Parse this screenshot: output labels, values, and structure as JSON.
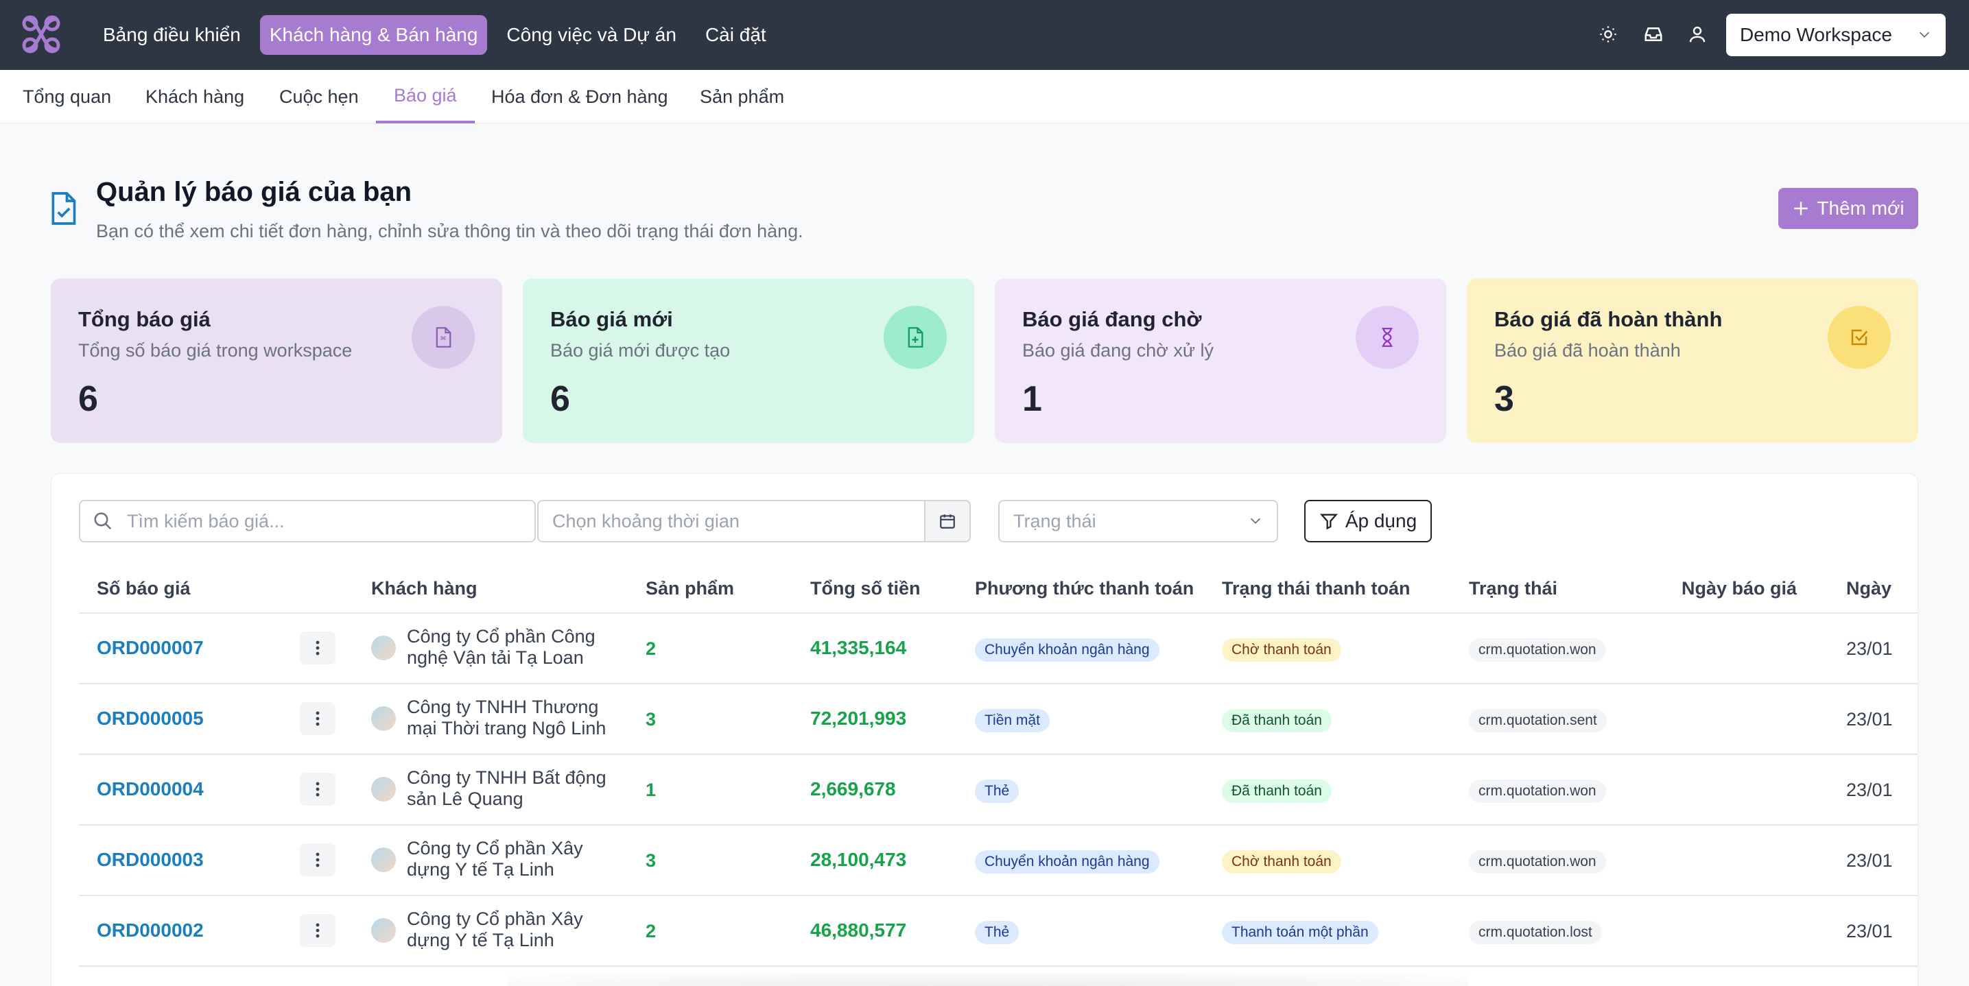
{
  "topnav": {
    "items": [
      {
        "label": "Bảng điều khiển",
        "active": false
      },
      {
        "label": "Khách hàng & Bán hàng",
        "active": true
      },
      {
        "label": "Công việc và Dự án",
        "active": false
      },
      {
        "label": "Cài đặt",
        "active": false
      }
    ],
    "workspace": "Demo Workspace",
    "icons": [
      "sun-icon",
      "inbox-icon",
      "user-icon"
    ]
  },
  "subnav": {
    "tabs": [
      {
        "label": "Tổng quan",
        "active": false
      },
      {
        "label": "Khách hàng",
        "active": false
      },
      {
        "label": "Cuộc hẹn",
        "active": false
      },
      {
        "label": "Báo giá",
        "active": true
      },
      {
        "label": "Hóa đơn & Đơn hàng",
        "active": false
      },
      {
        "label": "Sản phẩm",
        "active": false
      }
    ]
  },
  "header": {
    "title": "Quản lý báo giá của bạn",
    "subtitle": "Bạn có thể xem chi tiết đơn hàng, chỉnh sửa thông tin và theo dõi trạng thái đơn hàng.",
    "add_label": "Thêm mới"
  },
  "stats": [
    {
      "title": "Tổng báo giá",
      "subtitle": "Tổng số báo giá trong workspace",
      "value": "6",
      "bg": "#e9e0f3",
      "icon_bg": "#d9c8ea",
      "icon_color": "#8b5fb5",
      "icon": "file-icon"
    },
    {
      "title": "Báo giá mới",
      "subtitle": "Báo giá mới được tạo",
      "value": "6",
      "bg": "#d7f7e8",
      "icon_bg": "#9deccb",
      "icon_color": "#119a63",
      "icon": "file-plus-icon"
    },
    {
      "title": "Báo giá đang chờ",
      "subtitle": "Báo giá đang chờ xử lý",
      "value": "1",
      "bg": "#f2e6fa",
      "icon_bg": "#e4cdf6",
      "icon_color": "#9330c6",
      "icon": "hourglass-icon"
    },
    {
      "title": "Báo giá đã hoàn thành",
      "subtitle": "Báo giá đã hoàn thành",
      "value": "3",
      "bg": "#fcf2c4",
      "icon_bg": "#fbe07a",
      "icon_color": "#c48a06",
      "icon": "check-square-icon"
    }
  ],
  "filters": {
    "search_placeholder": "Tìm kiếm báo giá...",
    "date_placeholder": "Chọn khoảng thời gian",
    "status_placeholder": "Trạng thái",
    "apply_label": "Áp dụng"
  },
  "table": {
    "columns": [
      "Số báo giá",
      "Khách hàng",
      "Sản phẩm",
      "Tổng số tiền",
      "Phương thức thanh toán",
      "Trạng thái thanh toán",
      "Trạng thái",
      "Ngày báo giá",
      "Ngày"
    ],
    "rows": [
      {
        "id": "ORD000007",
        "customer": "Công ty Cổ phần Công nghệ Vận tải Tạ Loan",
        "qty": "2",
        "amount": "41,335,164",
        "method": "Chuyển khoản ngân hàng",
        "pay_status": "Chờ thanh toán",
        "pay_variant": "yellow",
        "status": "crm.quotation.won",
        "quote_date": "",
        "date": "23/01"
      },
      {
        "id": "ORD000005",
        "customer": "Công ty TNHH Thương mại Thời trang Ngô Linh",
        "qty": "3",
        "amount": "72,201,993",
        "method": "Tiền mặt",
        "pay_status": "Đã thanh toán",
        "pay_variant": "green",
        "status": "crm.quotation.sent",
        "quote_date": "",
        "date": "23/01"
      },
      {
        "id": "ORD000004",
        "customer": "Công ty TNHH Bất động sản Lê Quang",
        "qty": "1",
        "amount": "2,669,678",
        "method": "Thẻ",
        "pay_status": "Đã thanh toán",
        "pay_variant": "green",
        "status": "crm.quotation.won",
        "quote_date": "",
        "date": "23/01"
      },
      {
        "id": "ORD000003",
        "customer": "Công ty Cổ phần Xây dựng Y tế Tạ Linh",
        "qty": "3",
        "amount": "28,100,473",
        "method": "Chuyển khoản ngân hàng",
        "pay_status": "Chờ thanh toán",
        "pay_variant": "yellow",
        "status": "crm.quotation.won",
        "quote_date": "",
        "date": "23/01"
      },
      {
        "id": "ORD000002",
        "customer": "Công ty Cổ phần Xây dựng Y tế Tạ Linh",
        "qty": "2",
        "amount": "46,880,577",
        "method": "Thẻ",
        "pay_status": "Thanh toán một phần",
        "pay_variant": "blue",
        "status": "crm.quotation.lost",
        "quote_date": "",
        "date": "23/01"
      }
    ]
  }
}
